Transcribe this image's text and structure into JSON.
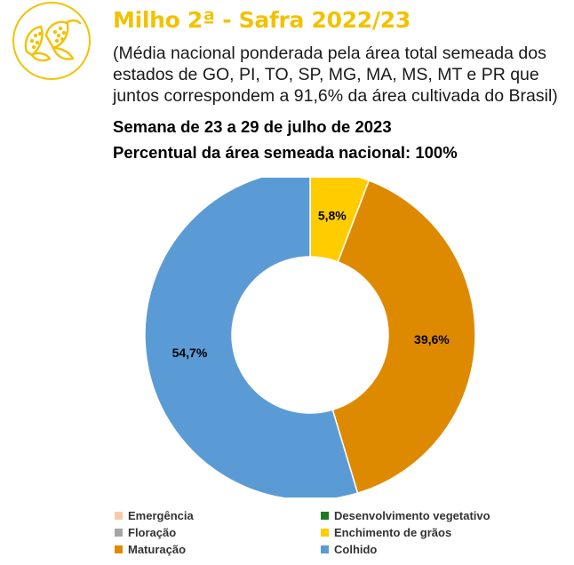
{
  "header": {
    "title": "Milho 2ª - Safra 2022/23",
    "title_color": "#F2C200",
    "subtitle": "(Média nacional ponderada pela área total semeada dos estados de GO, PI, TO, SP, MG, MA, MS, MT e PR que juntos correspondem a 91,6% da área cultivada do Brasil)",
    "week": "Semana de 23 a 29 de julho de 2023",
    "sown_percent": "Percentual da área semeada nacional: 100%",
    "icon": "corn-icon",
    "icon_color": "#F2C200"
  },
  "chart_data": {
    "type": "pie",
    "donut": true,
    "title": "",
    "legend_position": "bottom",
    "slices": [
      {
        "name": "Emergência",
        "value": 0,
        "label": "",
        "color": "#F8CBAD"
      },
      {
        "name": "Desenvolvimento vegetativo",
        "value": 0,
        "label": "",
        "color": "#1E7B1E"
      },
      {
        "name": "Floração",
        "value": 0,
        "label": "",
        "color": "#A5A5A5"
      },
      {
        "name": "Enchimento de grãos",
        "value": 5.8,
        "label": "5,8%",
        "color": "#FFCC00"
      },
      {
        "name": "Maturação",
        "value": 39.6,
        "label": "39,6%",
        "color": "#DE8A00"
      },
      {
        "name": "Colhido",
        "value": 54.7,
        "label": "54,7%",
        "color": "#5B9BD5"
      }
    ]
  }
}
